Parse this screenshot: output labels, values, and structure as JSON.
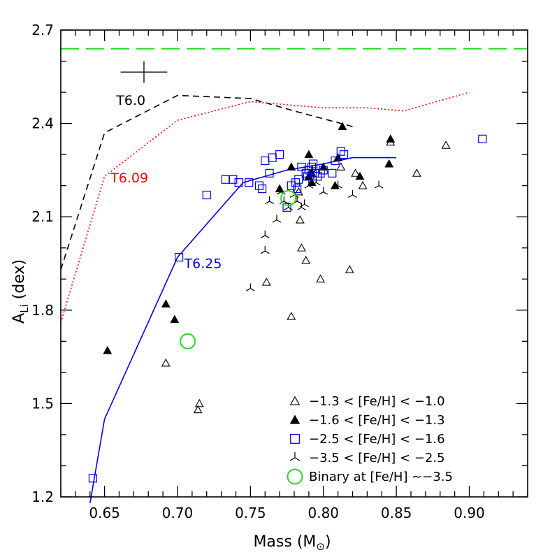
{
  "chart_data": {
    "type": "scatter",
    "xlabel": "Mass (M",
    "xlabel_sub": "⊙",
    "xlabel_close": ")",
    "ylabel": "A",
    "ylabel_sub": "Li",
    "ylabel_rest": " (dex)",
    "xlim": [
      0.62,
      0.94
    ],
    "ylim": [
      1.2,
      2.7
    ],
    "x_ticks": [
      0.65,
      0.7,
      0.75,
      0.8,
      0.85,
      0.9
    ],
    "x_tick_labels": [
      "0.65",
      "0.70",
      "0.75",
      "0.80",
      "0.85",
      "0.90"
    ],
    "y_ticks": [
      1.2,
      1.5,
      1.8,
      2.1,
      2.4,
      2.7
    ],
    "y_tick_labels": [
      "1.2",
      "1.5",
      "1.8",
      "2.1",
      "2.4",
      "2.7"
    ],
    "x_minor_step": 0.01,
    "y_minor_step": 0.1,
    "reference_line": {
      "y": 2.64,
      "color": "#22dd22",
      "style": "dashed"
    },
    "error_bar": {
      "x": 0.677,
      "y": 2.565,
      "xerr": 0.016,
      "yerr": 0.035
    },
    "curves": [
      {
        "name": "T6.0",
        "color": "#000000",
        "style": "dashed",
        "label_at": [
          0.668,
          2.46
        ],
        "points": [
          [
            0.62,
            1.93
          ],
          [
            0.65,
            2.37
          ],
          [
            0.7,
            2.49
          ],
          [
            0.75,
            2.48
          ],
          [
            0.78,
            2.44
          ],
          [
            0.82,
            2.39
          ]
        ]
      },
      {
        "name": "T6.09",
        "color": "#ff0000",
        "style": "dotted",
        "label_at": [
          0.667,
          2.21
        ],
        "points": [
          [
            0.62,
            1.76
          ],
          [
            0.65,
            2.23
          ],
          [
            0.7,
            2.41
          ],
          [
            0.75,
            2.47
          ],
          [
            0.8,
            2.45
          ],
          [
            0.83,
            2.45
          ],
          [
            0.855,
            2.44
          ],
          [
            0.9,
            2.5
          ]
        ]
      },
      {
        "name": "T6.25",
        "color": "#0000ee",
        "style": "solid",
        "label_at": [
          0.7175,
          1.935
        ],
        "points": [
          [
            0.64,
            1.18
          ],
          [
            0.65,
            1.45
          ],
          [
            0.7,
            1.97
          ],
          [
            0.745,
            2.21
          ],
          [
            0.775,
            2.25
          ],
          [
            0.8,
            2.27
          ],
          [
            0.82,
            2.29
          ],
          [
            0.85,
            2.29
          ]
        ]
      }
    ],
    "series": [
      {
        "name": "−1.3 < [Fe/H] < −1.0",
        "marker": "triangle-open",
        "color": "#000000",
        "points": [
          [
            0.692,
            1.63
          ],
          [
            0.714,
            1.48
          ],
          [
            0.715,
            1.5
          ],
          [
            0.761,
            1.89
          ],
          [
            0.778,
            1.78
          ],
          [
            0.784,
            2.09
          ],
          [
            0.785,
            2.0
          ],
          [
            0.788,
            1.96
          ],
          [
            0.798,
            1.9
          ],
          [
            0.818,
            1.93
          ],
          [
            0.812,
            2.26
          ],
          [
            0.822,
            2.24
          ],
          [
            0.827,
            2.2
          ],
          [
            0.846,
            2.34
          ],
          [
            0.864,
            2.24
          ],
          [
            0.884,
            2.33
          ],
          [
            0.783,
            2.18
          ]
        ]
      },
      {
        "name": "−1.6 < [Fe/H] < −1.3",
        "marker": "triangle-filled",
        "color": "#000000",
        "points": [
          [
            0.652,
            1.67
          ],
          [
            0.692,
            1.82
          ],
          [
            0.698,
            1.77
          ],
          [
            0.77,
            2.19
          ],
          [
            0.778,
            2.26
          ],
          [
            0.79,
            2.3
          ],
          [
            0.792,
            2.21
          ],
          [
            0.792,
            2.24
          ],
          [
            0.8,
            2.26
          ],
          [
            0.808,
            2.2
          ],
          [
            0.81,
            2.29
          ],
          [
            0.813,
            2.39
          ],
          [
            0.825,
            2.23
          ],
          [
            0.845,
            2.27
          ],
          [
            0.846,
            2.35
          ],
          [
            0.79,
            2.23
          ]
        ]
      },
      {
        "name": "−2.5 < [Fe/H] < −1.6",
        "marker": "square-open",
        "color": "#0000ee",
        "points": [
          [
            0.642,
            1.26
          ],
          [
            0.701,
            1.97
          ],
          [
            0.72,
            2.17
          ],
          [
            0.733,
            2.22
          ],
          [
            0.738,
            2.22
          ],
          [
            0.742,
            2.21
          ],
          [
            0.749,
            2.21
          ],
          [
            0.756,
            2.2
          ],
          [
            0.758,
            2.19
          ],
          [
            0.76,
            2.28
          ],
          [
            0.763,
            2.24
          ],
          [
            0.765,
            2.29
          ],
          [
            0.77,
            2.3
          ],
          [
            0.775,
            2.13
          ],
          [
            0.778,
            2.2
          ],
          [
            0.781,
            2.21
          ],
          [
            0.783,
            2.22
          ],
          [
            0.785,
            2.26
          ],
          [
            0.788,
            2.24
          ],
          [
            0.79,
            2.25
          ],
          [
            0.792,
            2.26
          ],
          [
            0.794,
            2.24
          ],
          [
            0.796,
            2.23
          ],
          [
            0.798,
            2.24
          ],
          [
            0.8,
            2.25
          ],
          [
            0.806,
            2.24
          ],
          [
            0.808,
            2.28
          ],
          [
            0.812,
            2.31
          ],
          [
            0.814,
            2.3
          ],
          [
            0.909,
            2.35
          ],
          [
            0.793,
            2.27
          ],
          [
            0.782,
            2.19
          ],
          [
            0.789,
            2.23
          ]
        ]
      },
      {
        "name": "−3.5 < [Fe/H] < −2.5",
        "marker": "tri-star",
        "color": "#000000",
        "points": [
          [
            0.75,
            1.87
          ],
          [
            0.76,
            2.04
          ],
          [
            0.76,
            1.99
          ],
          [
            0.763,
            2.15
          ],
          [
            0.768,
            2.09
          ],
          [
            0.771,
            2.18
          ],
          [
            0.773,
            2.15
          ],
          [
            0.776,
            2.13
          ],
          [
            0.78,
            2.17
          ],
          [
            0.782,
            2.15
          ],
          [
            0.785,
            2.13
          ],
          [
            0.787,
            2.14
          ],
          [
            0.79,
            2.2
          ],
          [
            0.795,
            2.21
          ],
          [
            0.8,
            2.18
          ],
          [
            0.81,
            2.2
          ],
          [
            0.82,
            2.17
          ],
          [
            0.838,
            2.2
          ],
          [
            0.792,
            2.25
          ]
        ]
      },
      {
        "name": "Binary at [Fe/H] ~−3.5",
        "marker": "circle-open",
        "color": "#22dd22",
        "points": [
          [
            0.707,
            1.7
          ],
          [
            0.776,
            2.16
          ]
        ]
      }
    ]
  }
}
